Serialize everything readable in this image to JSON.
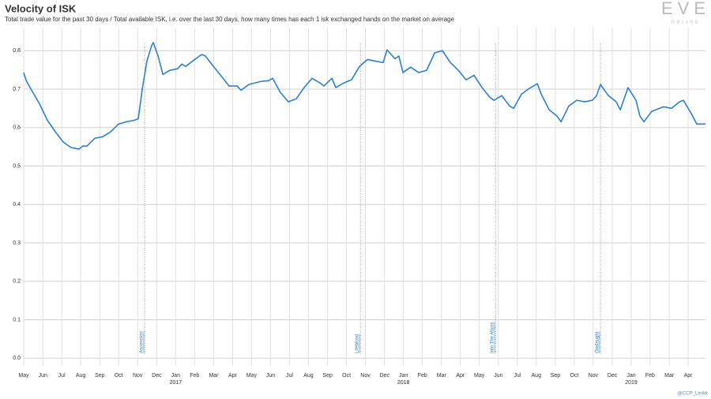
{
  "chart_data": {
    "type": "line",
    "title": "Velocity of ISK",
    "subtitle": "Total trade value for the past 30 days / Total available ISK, i.e. over the last 30 days, how many times has each 1 isk exchanged hands on the market on average",
    "logo": "EVE",
    "logo_subtext": "ONLINE",
    "credit": "@CCP_Lerikk",
    "grid": true,
    "xlim": [
      2016.333,
      2019.326
    ],
    "ylim": [
      -0.02,
      0.86
    ],
    "yticks": [
      {
        "value": 0,
        "label": "0.0"
      },
      0.1,
      0.2,
      0.3,
      0.4,
      0.5,
      0.6,
      0.7,
      0.8
    ],
    "xticks": [
      {
        "value": 2016.333,
        "label": "May"
      },
      {
        "value": 2016.417,
        "label": "Jun"
      },
      {
        "value": 2016.5,
        "label": "Jul"
      },
      {
        "value": 2016.583,
        "label": "Aug"
      },
      {
        "value": 2016.667,
        "label": "Sep"
      },
      {
        "value": 2016.75,
        "label": "Oct"
      },
      {
        "value": 2016.833,
        "label": "Nov"
      },
      {
        "value": 2016.917,
        "label": "Dec"
      },
      {
        "value": 2017,
        "label": "Jan"
      },
      {
        "value": 2017.083,
        "label": "Feb"
      },
      {
        "value": 2017.167,
        "label": "Mar"
      },
      {
        "value": 2017.25,
        "label": "Apr"
      },
      {
        "value": 2017.333,
        "label": "May"
      },
      {
        "value": 2017.417,
        "label": "Jun"
      },
      {
        "value": 2017.5,
        "label": "Jul"
      },
      {
        "value": 2017.583,
        "label": "Aug"
      },
      {
        "value": 2017.667,
        "label": "Sep"
      },
      {
        "value": 2017.75,
        "label": "Oct"
      },
      {
        "value": 2017.833,
        "label": "Nov"
      },
      {
        "value": 2017.917,
        "label": "Dec"
      },
      {
        "value": 2018,
        "label": "Jan"
      },
      {
        "value": 2018.083,
        "label": "Feb"
      },
      {
        "value": 2018.167,
        "label": "Mar"
      },
      {
        "value": 2018.25,
        "label": "Apr"
      },
      {
        "value": 2018.333,
        "label": "May"
      },
      {
        "value": 2018.417,
        "label": "Jun"
      },
      {
        "value": 2018.5,
        "label": "Jul"
      },
      {
        "value": 2018.583,
        "label": "Aug"
      },
      {
        "value": 2018.667,
        "label": "Sep"
      },
      {
        "value": 2018.75,
        "label": "Oct"
      },
      {
        "value": 2018.833,
        "label": "Nov"
      },
      {
        "value": 2018.917,
        "label": "Dec"
      },
      {
        "value": 2019,
        "label": "Jan"
      },
      {
        "value": 2019.083,
        "label": "Feb"
      },
      {
        "value": 2019.167,
        "label": "Mar"
      },
      {
        "value": 2019.25,
        "label": "Apr"
      }
    ],
    "year_labels": [
      2017,
      2018,
      2019
    ],
    "events": [
      {
        "x": 2016.864,
        "label": "Ascension"
      },
      {
        "x": 2017.811,
        "label": "Lifeblood"
      },
      {
        "x": 2018.404,
        "label": "Into The Abyss"
      },
      {
        "x": 2018.865,
        "label": "Onslaught"
      }
    ],
    "series": [
      {
        "color": "#2a7fd4",
        "x": [
          2016.333,
          2016.344,
          2016.368,
          2016.403,
          2016.437,
          2016.472,
          2016.507,
          2016.541,
          2016.576,
          2016.593,
          2016.611,
          2016.645,
          2016.68,
          2016.715,
          2016.749,
          2016.784,
          2016.819,
          2016.836,
          2016.854,
          2016.874,
          2016.895,
          2016.902,
          2016.923,
          2016.944,
          2016.975,
          2017.009,
          2017.027,
          2017.044,
          2017.079,
          2017.114,
          2017.131,
          2017.166,
          2017.2,
          2017.235,
          2017.27,
          2017.287,
          2017.322,
          2017.374,
          2017.408,
          2017.426,
          2017.46,
          2017.495,
          2017.53,
          2017.564,
          2017.599,
          2017.634,
          2017.651,
          2017.686,
          2017.703,
          2017.738,
          2017.772,
          2017.807,
          2017.842,
          2017.876,
          2017.911,
          2017.928,
          2017.963,
          2017.98,
          2017.998,
          2018.032,
          2018.067,
          2018.102,
          2018.137,
          2018.171,
          2018.206,
          2018.241,
          2018.275,
          2018.31,
          2018.345,
          2018.379,
          2018.397,
          2018.432,
          2018.466,
          2018.484,
          2018.518,
          2018.553,
          2018.588,
          2018.605,
          2018.64,
          2018.674,
          2018.692,
          2018.726,
          2018.761,
          2018.796,
          2018.83,
          2018.848,
          2018.865,
          2018.9,
          2018.934,
          2018.952,
          2018.986,
          2019.021,
          2019.038,
          2019.056,
          2019.09,
          2019.142,
          2019.177,
          2019.212,
          2019.229,
          2019.264,
          2019.288,
          2019.309,
          2019.326
        ],
        "values": [
          0.743,
          0.722,
          0.697,
          0.661,
          0.619,
          0.589,
          0.562,
          0.548,
          0.544,
          0.552,
          0.552,
          0.572,
          0.576,
          0.589,
          0.609,
          0.615,
          0.619,
          0.623,
          0.702,
          0.773,
          0.814,
          0.821,
          0.786,
          0.738,
          0.749,
          0.753,
          0.765,
          0.759,
          0.775,
          0.79,
          0.786,
          0.759,
          0.734,
          0.708,
          0.708,
          0.697,
          0.712,
          0.72,
          0.722,
          0.728,
          0.691,
          0.667,
          0.675,
          0.704,
          0.728,
          0.716,
          0.708,
          0.728,
          0.704,
          0.716,
          0.724,
          0.759,
          0.777,
          0.773,
          0.769,
          0.802,
          0.779,
          0.786,
          0.743,
          0.757,
          0.743,
          0.749,
          0.794,
          0.8,
          0.769,
          0.749,
          0.724,
          0.736,
          0.704,
          0.679,
          0.671,
          0.683,
          0.656,
          0.65,
          0.687,
          0.702,
          0.714,
          0.687,
          0.646,
          0.63,
          0.615,
          0.656,
          0.671,
          0.667,
          0.671,
          0.683,
          0.712,
          0.683,
          0.667,
          0.646,
          0.704,
          0.671,
          0.63,
          0.615,
          0.642,
          0.654,
          0.65,
          0.667,
          0.671,
          0.636,
          0.609,
          0.609,
          0.609
        ]
      }
    ]
  }
}
